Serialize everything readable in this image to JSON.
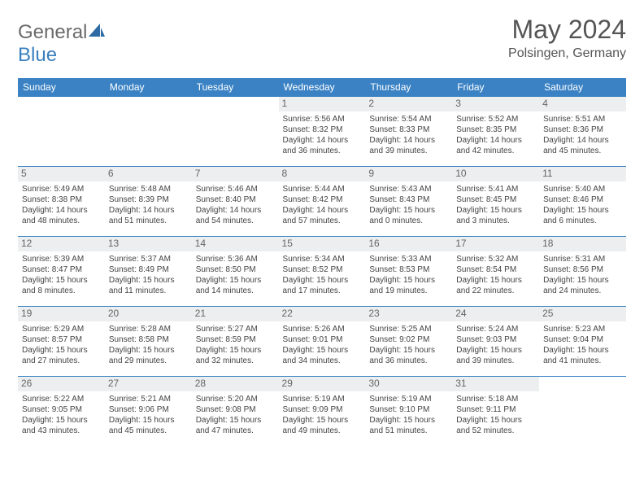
{
  "brand": {
    "part1": "General",
    "part2": "Blue"
  },
  "title": "May 2024",
  "subtitle": "Polsingen, Germany",
  "header_color": "#3a82c4",
  "border_color": "#3a82c4",
  "daynum_bg": "#eceeef",
  "columns": [
    "Sunday",
    "Monday",
    "Tuesday",
    "Wednesday",
    "Thursday",
    "Friday",
    "Saturday"
  ],
  "weeks": [
    [
      null,
      null,
      null,
      {
        "n": "1",
        "sr": "5:56 AM",
        "ss": "8:32 PM",
        "dl": "14 hours and 36 minutes."
      },
      {
        "n": "2",
        "sr": "5:54 AM",
        "ss": "8:33 PM",
        "dl": "14 hours and 39 minutes."
      },
      {
        "n": "3",
        "sr": "5:52 AM",
        "ss": "8:35 PM",
        "dl": "14 hours and 42 minutes."
      },
      {
        "n": "4",
        "sr": "5:51 AM",
        "ss": "8:36 PM",
        "dl": "14 hours and 45 minutes."
      }
    ],
    [
      {
        "n": "5",
        "sr": "5:49 AM",
        "ss": "8:38 PM",
        "dl": "14 hours and 48 minutes."
      },
      {
        "n": "6",
        "sr": "5:48 AM",
        "ss": "8:39 PM",
        "dl": "14 hours and 51 minutes."
      },
      {
        "n": "7",
        "sr": "5:46 AM",
        "ss": "8:40 PM",
        "dl": "14 hours and 54 minutes."
      },
      {
        "n": "8",
        "sr": "5:44 AM",
        "ss": "8:42 PM",
        "dl": "14 hours and 57 minutes."
      },
      {
        "n": "9",
        "sr": "5:43 AM",
        "ss": "8:43 PM",
        "dl": "15 hours and 0 minutes."
      },
      {
        "n": "10",
        "sr": "5:41 AM",
        "ss": "8:45 PM",
        "dl": "15 hours and 3 minutes."
      },
      {
        "n": "11",
        "sr": "5:40 AM",
        "ss": "8:46 PM",
        "dl": "15 hours and 6 minutes."
      }
    ],
    [
      {
        "n": "12",
        "sr": "5:39 AM",
        "ss": "8:47 PM",
        "dl": "15 hours and 8 minutes."
      },
      {
        "n": "13",
        "sr": "5:37 AM",
        "ss": "8:49 PM",
        "dl": "15 hours and 11 minutes."
      },
      {
        "n": "14",
        "sr": "5:36 AM",
        "ss": "8:50 PM",
        "dl": "15 hours and 14 minutes."
      },
      {
        "n": "15",
        "sr": "5:34 AM",
        "ss": "8:52 PM",
        "dl": "15 hours and 17 minutes."
      },
      {
        "n": "16",
        "sr": "5:33 AM",
        "ss": "8:53 PM",
        "dl": "15 hours and 19 minutes."
      },
      {
        "n": "17",
        "sr": "5:32 AM",
        "ss": "8:54 PM",
        "dl": "15 hours and 22 minutes."
      },
      {
        "n": "18",
        "sr": "5:31 AM",
        "ss": "8:56 PM",
        "dl": "15 hours and 24 minutes."
      }
    ],
    [
      {
        "n": "19",
        "sr": "5:29 AM",
        "ss": "8:57 PM",
        "dl": "15 hours and 27 minutes."
      },
      {
        "n": "20",
        "sr": "5:28 AM",
        "ss": "8:58 PM",
        "dl": "15 hours and 29 minutes."
      },
      {
        "n": "21",
        "sr": "5:27 AM",
        "ss": "8:59 PM",
        "dl": "15 hours and 32 minutes."
      },
      {
        "n": "22",
        "sr": "5:26 AM",
        "ss": "9:01 PM",
        "dl": "15 hours and 34 minutes."
      },
      {
        "n": "23",
        "sr": "5:25 AM",
        "ss": "9:02 PM",
        "dl": "15 hours and 36 minutes."
      },
      {
        "n": "24",
        "sr": "5:24 AM",
        "ss": "9:03 PM",
        "dl": "15 hours and 39 minutes."
      },
      {
        "n": "25",
        "sr": "5:23 AM",
        "ss": "9:04 PM",
        "dl": "15 hours and 41 minutes."
      }
    ],
    [
      {
        "n": "26",
        "sr": "5:22 AM",
        "ss": "9:05 PM",
        "dl": "15 hours and 43 minutes."
      },
      {
        "n": "27",
        "sr": "5:21 AM",
        "ss": "9:06 PM",
        "dl": "15 hours and 45 minutes."
      },
      {
        "n": "28",
        "sr": "5:20 AM",
        "ss": "9:08 PM",
        "dl": "15 hours and 47 minutes."
      },
      {
        "n": "29",
        "sr": "5:19 AM",
        "ss": "9:09 PM",
        "dl": "15 hours and 49 minutes."
      },
      {
        "n": "30",
        "sr": "5:19 AM",
        "ss": "9:10 PM",
        "dl": "15 hours and 51 minutes."
      },
      {
        "n": "31",
        "sr": "5:18 AM",
        "ss": "9:11 PM",
        "dl": "15 hours and 52 minutes."
      },
      null
    ]
  ],
  "labels": {
    "sunrise": "Sunrise: ",
    "sunset": "Sunset: ",
    "daylight": "Daylight: "
  }
}
